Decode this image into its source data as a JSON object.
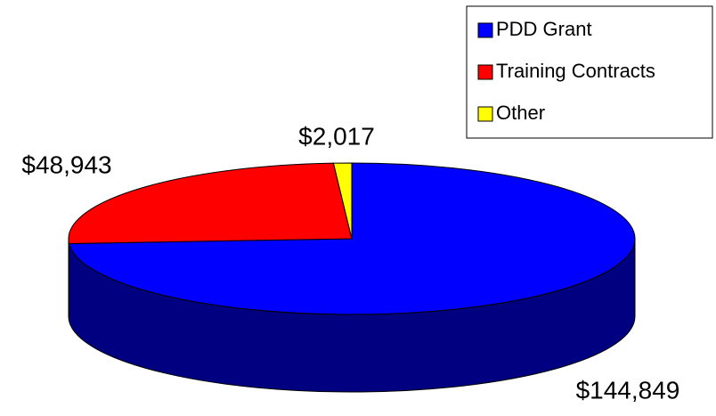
{
  "chart_data": {
    "type": "pie",
    "categories": [
      "PDD Grant",
      "Training Contracts",
      "Other"
    ],
    "values": [
      144849,
      48943,
      2017
    ],
    "value_labels": [
      "$144,849",
      "$48,943",
      "$2,017"
    ],
    "colors": [
      "#0000ff",
      "#ff0000",
      "#ffff00"
    ],
    "side_colors": [
      "#000080",
      "#800000",
      "#808000"
    ],
    "legend": "top-right"
  }
}
